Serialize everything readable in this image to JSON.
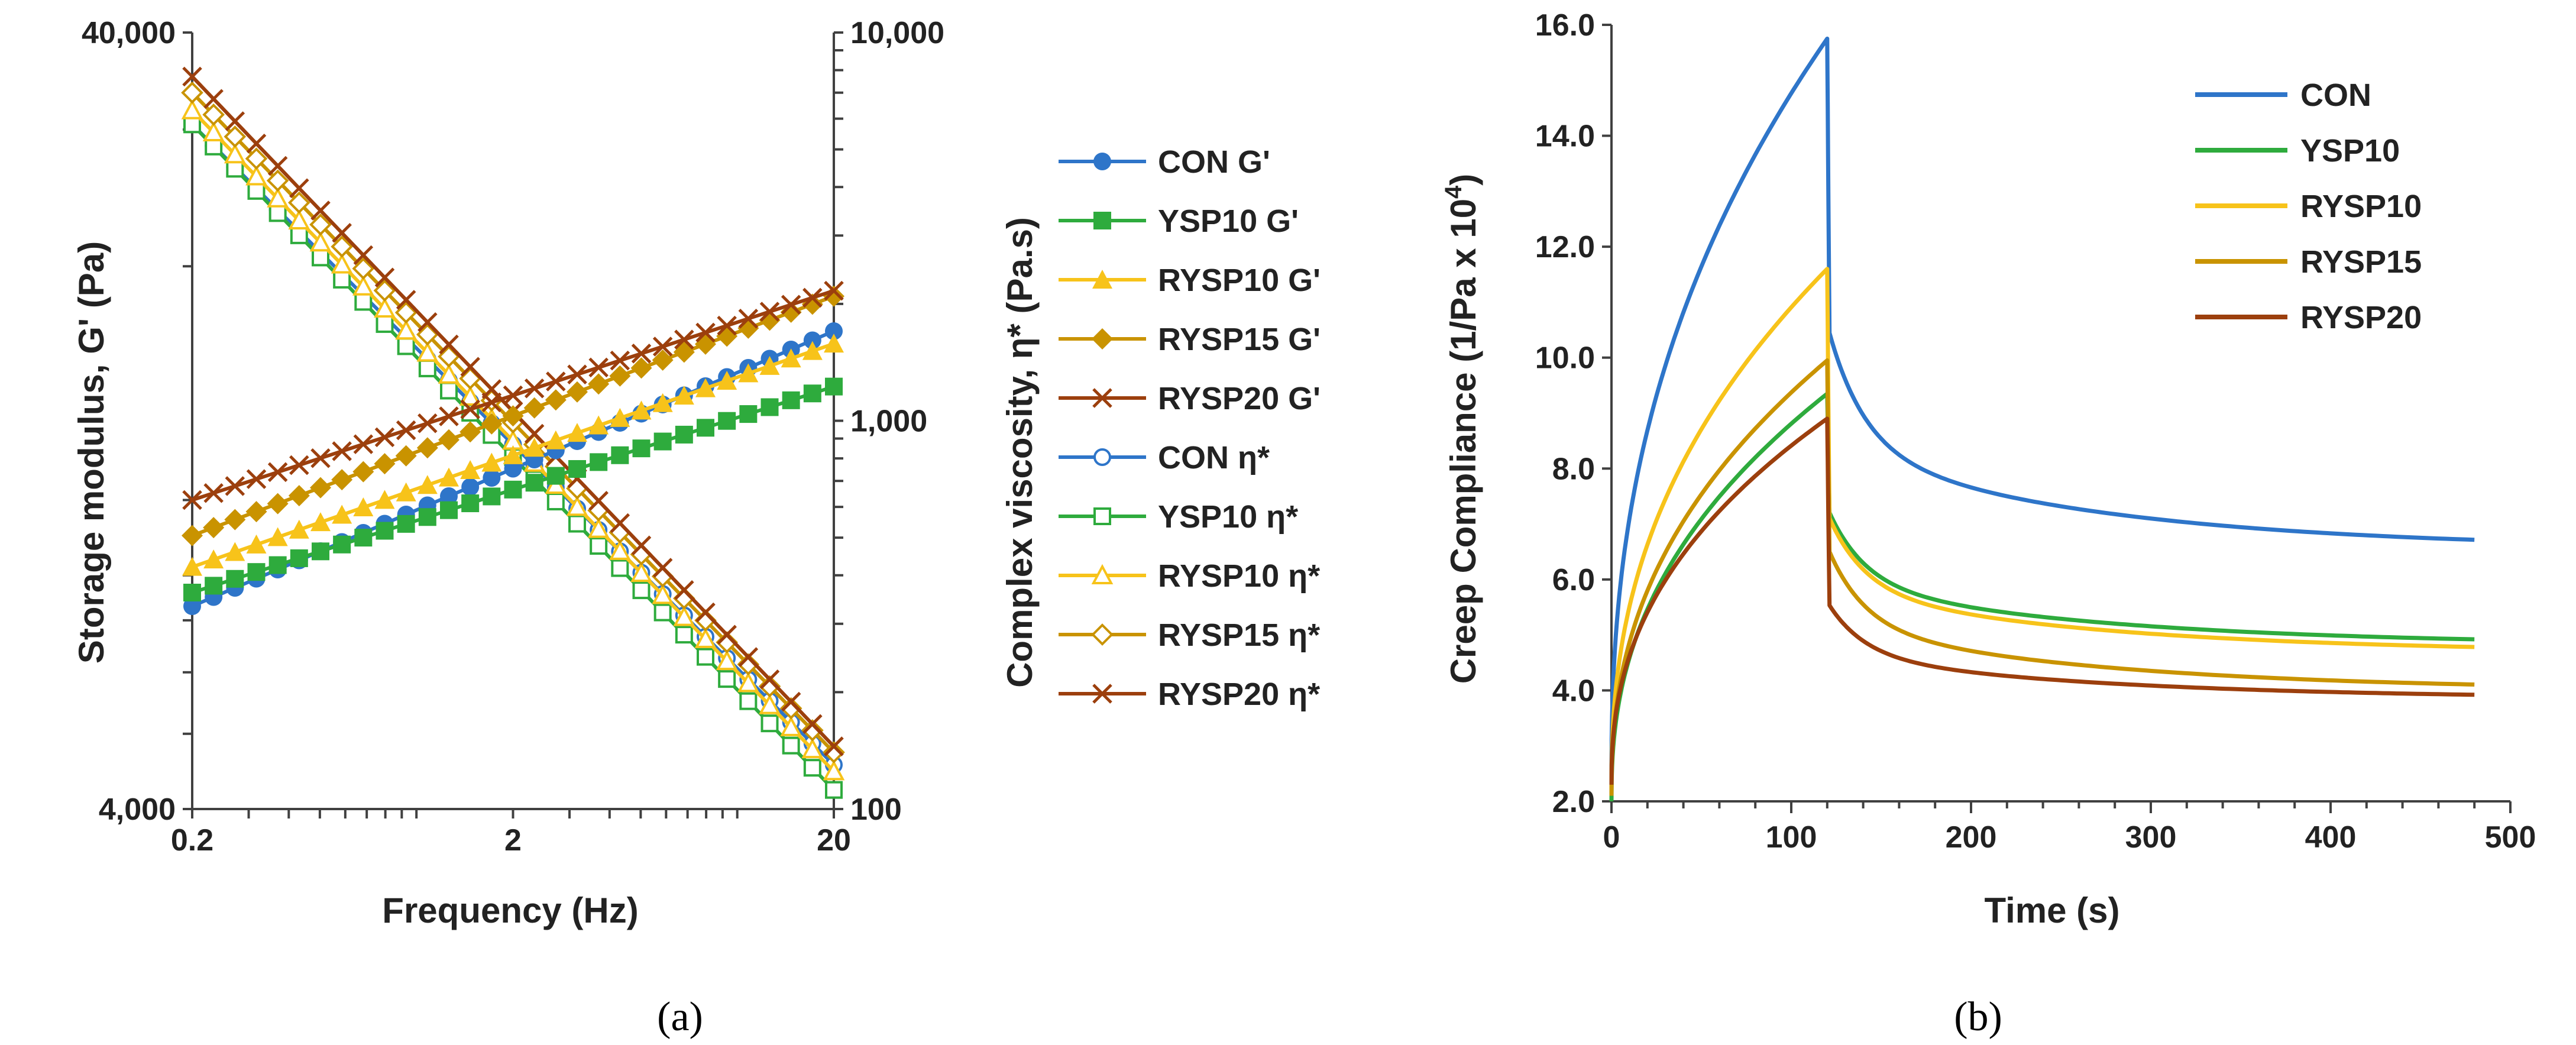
{
  "colors": {
    "CON": "#2E75C9",
    "YSP10": "#2EAB3D",
    "RYSP10": "#F7C31A",
    "RYSP15": "#C99300",
    "RYSP20": "#9C3F0D",
    "axis": "#404040"
  },
  "chart_data": [
    {
      "panel": "(a)",
      "type": "line",
      "xlabel": "Frequency (Hz)",
      "xscale": "log",
      "xlim": [
        0.2,
        20
      ],
      "xticks": [
        "0.2",
        "2",
        "20"
      ],
      "ylabel_left": "Storage modulus, G' (Pa)",
      "yscale_left": "log",
      "ylim_left": [
        4000,
        40000
      ],
      "yticks_left": [
        "4,000",
        "40,000"
      ],
      "ylabel_right": "Complex viscosity, η* (Pa.s)",
      "yscale_right": "log",
      "ylim_right": [
        100,
        10000
      ],
      "yticks_right": [
        "100",
        "1,000",
        "10,000"
      ],
      "points_per_series": 31,
      "legend_position": "right",
      "series": [
        {
          "name": "CON G'",
          "sample": "CON",
          "axis": "left",
          "marker": "circle-filled",
          "from": [
            0.2,
            7300
          ],
          "to": [
            20,
            16500
          ]
        },
        {
          "name": "YSP10 G'",
          "sample": "YSP10",
          "axis": "left",
          "marker": "square-filled",
          "from": [
            0.2,
            7600
          ],
          "to": [
            20,
            14000
          ]
        },
        {
          "name": "RYSP10 G'",
          "sample": "RYSP10",
          "axis": "left",
          "marker": "triangle-filled",
          "from": [
            0.2,
            8200
          ],
          "to": [
            20,
            15900
          ]
        },
        {
          "name": "RYSP15 G'",
          "sample": "RYSP15",
          "axis": "left",
          "marker": "diamond-filled",
          "from": [
            0.2,
            9000
          ],
          "to": [
            20,
            18300
          ]
        },
        {
          "name": "RYSP20 G'",
          "sample": "RYSP20",
          "axis": "left",
          "marker": "x",
          "from": [
            0.2,
            10000
          ],
          "to": [
            20,
            18600
          ]
        },
        {
          "name": "CON η*",
          "sample": "CON",
          "axis": "right",
          "marker": "circle-open",
          "from": [
            0.2,
            5800
          ],
          "to": [
            20,
            130
          ]
        },
        {
          "name": "YSP10 η*",
          "sample": "YSP10",
          "axis": "right",
          "marker": "square-open",
          "from": [
            0.2,
            5800
          ],
          "to": [
            20,
            112
          ]
        },
        {
          "name": "RYSP10 η*",
          "sample": "RYSP10",
          "axis": "right",
          "marker": "triangle-open",
          "from": [
            0.2,
            6300
          ],
          "to": [
            20,
            125
          ]
        },
        {
          "name": "RYSP15 η*",
          "sample": "RYSP15",
          "axis": "right",
          "marker": "diamond-open",
          "from": [
            0.2,
            7000
          ],
          "to": [
            20,
            140
          ]
        },
        {
          "name": "RYSP20 η*",
          "sample": "RYSP20",
          "axis": "right",
          "marker": "x",
          "from": [
            0.2,
            7700
          ],
          "to": [
            20,
            145
          ]
        }
      ]
    },
    {
      "panel": "(b)",
      "type": "line",
      "xlabel": "Time (s)",
      "ylabel": "Creep Compliance (1/Pa x 10",
      "ylabel_sup": "4",
      "ylabel_end": ")",
      "xlim": [
        0,
        500
      ],
      "ylim": [
        2.0,
        16.0
      ],
      "xticks": [
        "0",
        "100",
        "200",
        "300",
        "400",
        "500"
      ],
      "yticks": [
        "2.0",
        "4.0",
        "6.0",
        "8.0",
        "10.0",
        "12.0",
        "14.0",
        "16.0"
      ],
      "xtick_values": [
        0,
        100,
        200,
        300,
        400,
        500
      ],
      "ytick_values": [
        2,
        4,
        6,
        8,
        10,
        12,
        14,
        16
      ],
      "creep_end_s": 120,
      "end_s": 480,
      "legend_position": "top-right",
      "series": [
        {
          "name": "CON",
          "start": 2.4,
          "creep_peak": 15.75,
          "recovery_drop": 10.6,
          "final": 6.55,
          "dip1": [
            180,
            7.62
          ],
          "dip2": [
            360,
            6.8
          ]
        },
        {
          "name": "YSP10",
          "start": 2.0,
          "creep_peak": 9.35,
          "recovery_drop": 7.3,
          "final": 4.82
        },
        {
          "name": "RYSP10",
          "start": 2.2,
          "creep_peak": 11.6,
          "recovery_drop": 7.2,
          "final": 4.68
        },
        {
          "name": "RYSP15",
          "start": 2.1,
          "creep_peak": 9.95,
          "recovery_drop": 6.6,
          "final": 4.0
        },
        {
          "name": "RYSP20",
          "start": 2.3,
          "creep_peak": 8.9,
          "recovery_drop": 5.6,
          "final": 3.85
        }
      ]
    }
  ]
}
